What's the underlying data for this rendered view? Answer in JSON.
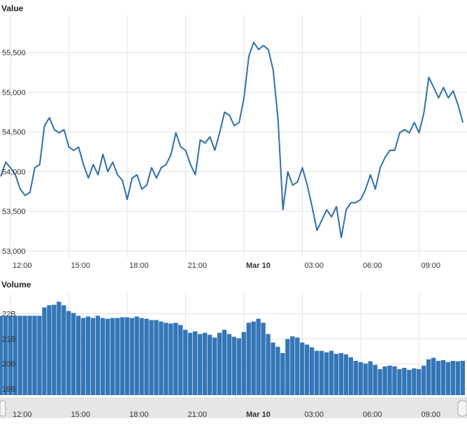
{
  "chart_data": [
    {
      "type": "line",
      "title": "Value",
      "color": "#2f6fae",
      "grid": true,
      "x": [
        11.5,
        11.75,
        12,
        12.25,
        12.5,
        12.75,
        13,
        13.25,
        13.5,
        13.75,
        14,
        14.25,
        14.5,
        14.75,
        15,
        15.25,
        15.5,
        15.75,
        16,
        16.25,
        16.5,
        16.75,
        17,
        17.25,
        17.5,
        17.75,
        18,
        18.25,
        18.5,
        18.75,
        19,
        19.25,
        19.5,
        19.75,
        20,
        20.25,
        20.5,
        20.75,
        21,
        21.25,
        21.5,
        21.75,
        22,
        22.25,
        22.5,
        22.75,
        23,
        23.25,
        23.5,
        23.75,
        24,
        24.25,
        24.5,
        24.75,
        25,
        25.25,
        25.5,
        25.75,
        26,
        26.25,
        26.5,
        26.75,
        27,
        27.25,
        27.5,
        27.75,
        28,
        28.25,
        28.5,
        28.75,
        29,
        29.25,
        29.5,
        29.75,
        30,
        30.25,
        30.5,
        30.75,
        31,
        31.25,
        31.5,
        31.75,
        32,
        32.25,
        32.5,
        32.75,
        33,
        33.25,
        33.5,
        33.75,
        34,
        34.25,
        34.5,
        34.75,
        35,
        35.25
      ],
      "values": [
        53940,
        54120,
        54050,
        53960,
        53780,
        53700,
        53740,
        54050,
        54090,
        54580,
        54680,
        54530,
        54490,
        54530,
        54310,
        54270,
        54310,
        54090,
        53920,
        54090,
        53960,
        54220,
        54000,
        54120,
        53960,
        53890,
        53650,
        53920,
        53960,
        53780,
        53830,
        54050,
        53920,
        54050,
        54090,
        54220,
        54490,
        54310,
        54270,
        54090,
        53960,
        54400,
        54360,
        54440,
        54270,
        54490,
        54750,
        54710,
        54580,
        54620,
        54930,
        55460,
        55630,
        55540,
        55590,
        55540,
        55280,
        54660,
        53520,
        54000,
        53830,
        53870,
        54050,
        53830,
        53560,
        53260,
        53390,
        53520,
        53430,
        53560,
        53170,
        53520,
        53610,
        53610,
        53650,
        53780,
        53960,
        53780,
        54050,
        54180,
        54270,
        54270,
        54490,
        54530,
        54490,
        54620,
        54490,
        54750,
        55190,
        55060,
        54930,
        55060,
        54930,
        55020,
        54840,
        54620
      ],
      "xlim": [
        11.46,
        35.46
      ],
      "xticks": [
        {
          "value": 12,
          "label": "12:00"
        },
        {
          "value": 15,
          "label": "15:00"
        },
        {
          "value": 18,
          "label": "18:00"
        },
        {
          "value": 21,
          "label": "21:00"
        },
        {
          "value": 24,
          "label": "Mar 10"
        },
        {
          "value": 27,
          "label": "03:00"
        },
        {
          "value": 30,
          "label": "06:00"
        },
        {
          "value": 33,
          "label": "09:00"
        }
      ],
      "ylim": [
        52920,
        55970
      ],
      "yticks": [
        {
          "value": 53000,
          "label": "53,000"
        },
        {
          "value": 53500,
          "label": "53,500"
        },
        {
          "value": 54000,
          "label": "54,000"
        },
        {
          "value": 54500,
          "label": "54,500"
        },
        {
          "value": 55000,
          "label": "55,000"
        },
        {
          "value": 55500,
          "label": "55,500"
        }
      ]
    },
    {
      "type": "bar",
      "title": "Volume",
      "color": "#3476b8",
      "grid": true,
      "x": [
        11.5,
        11.75,
        12,
        12.25,
        12.5,
        12.75,
        13,
        13.25,
        13.5,
        13.75,
        14,
        14.25,
        14.5,
        14.75,
        15,
        15.25,
        15.5,
        15.75,
        16,
        16.25,
        16.5,
        16.75,
        17,
        17.25,
        17.5,
        17.75,
        18,
        18.25,
        18.5,
        18.75,
        19,
        19.25,
        19.5,
        19.75,
        20,
        20.25,
        20.5,
        20.75,
        21,
        21.25,
        21.5,
        21.75,
        22,
        22.25,
        22.5,
        22.75,
        23,
        23.25,
        23.5,
        23.75,
        24,
        24.25,
        24.5,
        24.75,
        25,
        25.25,
        25.5,
        25.75,
        26,
        26.25,
        26.5,
        26.75,
        27,
        27.25,
        27.5,
        27.75,
        28,
        28.25,
        28.5,
        28.75,
        29,
        29.25,
        29.5,
        29.75,
        30,
        30.25,
        30.5,
        30.75,
        31,
        31.25,
        31.5,
        31.75,
        32,
        32.25,
        32.5,
        32.75,
        33,
        33.25,
        33.5,
        33.75,
        34,
        34.25,
        34.5,
        34.75,
        35,
        35.25
      ],
      "values": [
        21.92,
        21.92,
        21.92,
        21.92,
        21.92,
        21.92,
        21.92,
        21.92,
        21.92,
        22.25,
        22.34,
        22.36,
        22.48,
        22.34,
        22.11,
        22.03,
        21.92,
        21.83,
        21.89,
        21.83,
        21.92,
        21.83,
        21.8,
        21.83,
        21.83,
        21.86,
        21.86,
        21.83,
        21.89,
        21.83,
        21.8,
        21.75,
        21.75,
        21.69,
        21.64,
        21.61,
        21.64,
        21.55,
        21.36,
        21.24,
        21.3,
        21.19,
        21.24,
        21.16,
        21.05,
        21.24,
        21.36,
        21.19,
        21.08,
        21.02,
        21.27,
        21.64,
        21.69,
        21.8,
        21.64,
        21.19,
        20.85,
        20.68,
        20.43,
        20.99,
        21.1,
        21.05,
        20.85,
        20.77,
        20.66,
        20.52,
        20.52,
        20.46,
        20.52,
        20.4,
        20.43,
        20.38,
        20.26,
        20.12,
        20.07,
        20.01,
        20.1,
        19.96,
        19.79,
        19.9,
        19.93,
        19.9,
        19.79,
        19.84,
        19.76,
        19.82,
        19.79,
        19.93,
        20.18,
        20.24,
        20.12,
        20.15,
        20.07,
        20.12,
        20.1,
        20.12
      ],
      "xlim": [
        11.46,
        35.46
      ],
      "xticks": [
        {
          "value": 12,
          "label": "12:00"
        },
        {
          "value": 15,
          "label": "15:00"
        },
        {
          "value": 18,
          "label": "18:00"
        },
        {
          "value": 21,
          "label": "21:00"
        },
        {
          "value": 24,
          "label": "Mar 10"
        },
        {
          "value": 27,
          "label": "03:00"
        },
        {
          "value": 30,
          "label": "06:00"
        },
        {
          "value": 33,
          "label": "09:00"
        }
      ],
      "ylim": [
        18.75,
        22.8
      ],
      "yticks": [
        {
          "value": 19,
          "label": "19B"
        },
        {
          "value": 20,
          "label": "20B"
        },
        {
          "value": 21,
          "label": "21B"
        },
        {
          "value": 22,
          "label": "22B"
        }
      ]
    }
  ]
}
